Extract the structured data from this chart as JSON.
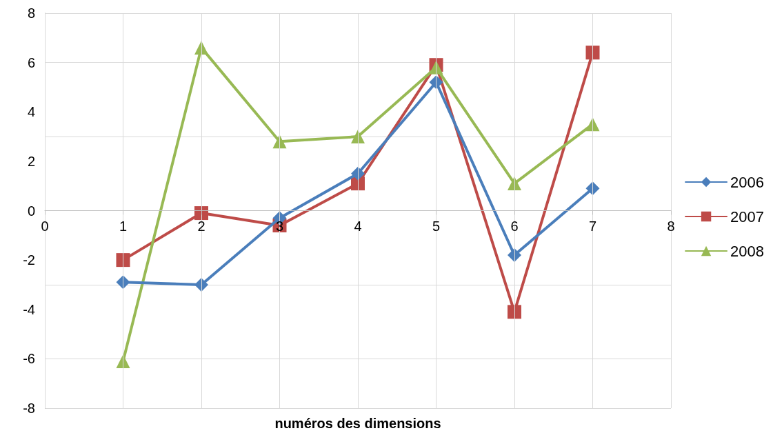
{
  "chart_data": {
    "type": "line",
    "xlabel": "numéros des dimensions",
    "x": [
      1,
      2,
      3,
      4,
      5,
      6,
      7
    ],
    "series": [
      {
        "name": "2006",
        "color": "#4a7ebb",
        "marker": "diamond",
        "values": [
          -2.9,
          -3.0,
          -0.3,
          1.5,
          5.2,
          -1.8,
          0.9
        ]
      },
      {
        "name": "2007",
        "color": "#be4b48",
        "marker": "square",
        "values": [
          -2.0,
          -0.1,
          -0.6,
          1.1,
          5.9,
          -4.1,
          6.4
        ]
      },
      {
        "name": "2008",
        "color": "#98b954",
        "marker": "triangle",
        "values": [
          -6.1,
          6.6,
          2.8,
          3.0,
          5.8,
          1.1,
          3.5
        ]
      }
    ],
    "xlim": [
      0,
      8
    ],
    "xticks": [
      0,
      1,
      2,
      3,
      4,
      5,
      6,
      7,
      8
    ],
    "ylim": [
      -8,
      8
    ],
    "yticks": [
      -8,
      -6,
      -4,
      -2,
      0,
      2,
      4,
      6,
      8
    ],
    "grid": true,
    "legend": "right",
    "line_style": "solid"
  }
}
